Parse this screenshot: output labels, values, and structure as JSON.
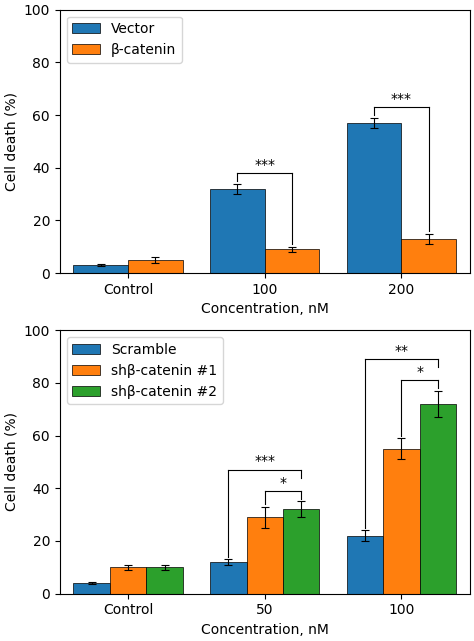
{
  "chart_data": [
    {
      "type": "bar",
      "categories": [
        "Control",
        "100",
        "200"
      ],
      "xlabel": "Concentration, nM",
      "ylabel": "Cell death (%)",
      "ylim": [
        0,
        100
      ],
      "yticks": [
        0,
        20,
        40,
        60,
        80,
        100
      ],
      "grid": false,
      "legend": "upper left",
      "series": [
        {
          "name": "Vector",
          "values": [
            3,
            32,
            57
          ],
          "errors": [
            0.5,
            2,
            2
          ]
        },
        {
          "name": "β-catenin",
          "values": [
            5,
            9,
            13
          ],
          "errors": [
            1,
            1,
            2
          ]
        }
      ],
      "annotations": [
        {
          "text": "***",
          "category": "100",
          "series": [
            "Vector",
            "β-catenin"
          ]
        },
        {
          "text": "***",
          "category": "200",
          "series": [
            "Vector",
            "β-catenin"
          ]
        }
      ]
    },
    {
      "type": "bar",
      "categories": [
        "Control",
        "50",
        "100"
      ],
      "xlabel": "Concentration, nM",
      "ylabel": "Cell death (%)",
      "ylim": [
        0,
        100
      ],
      "yticks": [
        0,
        20,
        40,
        60,
        80,
        100
      ],
      "grid": false,
      "legend": "upper left",
      "series": [
        {
          "name": "Scramble",
          "values": [
            4,
            12,
            22
          ],
          "errors": [
            0.5,
            1,
            2
          ]
        },
        {
          "name": "shβ-catenin #1",
          "values": [
            10,
            29,
            55
          ],
          "errors": [
            1,
            4,
            4
          ]
        },
        {
          "name": "shβ-catenin #2",
          "values": [
            10,
            32,
            72
          ],
          "errors": [
            1,
            3,
            5
          ]
        }
      ],
      "annotations": [
        {
          "text": "*",
          "category": "50",
          "series": [
            "shβ-catenin #1",
            "shβ-catenin #2"
          ]
        },
        {
          "text": "***",
          "category": "50",
          "series": [
            "Scramble",
            "shβ-catenin #2"
          ]
        },
        {
          "text": "*",
          "category": "100",
          "series": [
            "shβ-catenin #1",
            "shβ-catenin #2"
          ]
        },
        {
          "text": "**",
          "category": "100",
          "series": [
            "Scramble",
            "shβ-catenin #2"
          ]
        }
      ]
    }
  ]
}
